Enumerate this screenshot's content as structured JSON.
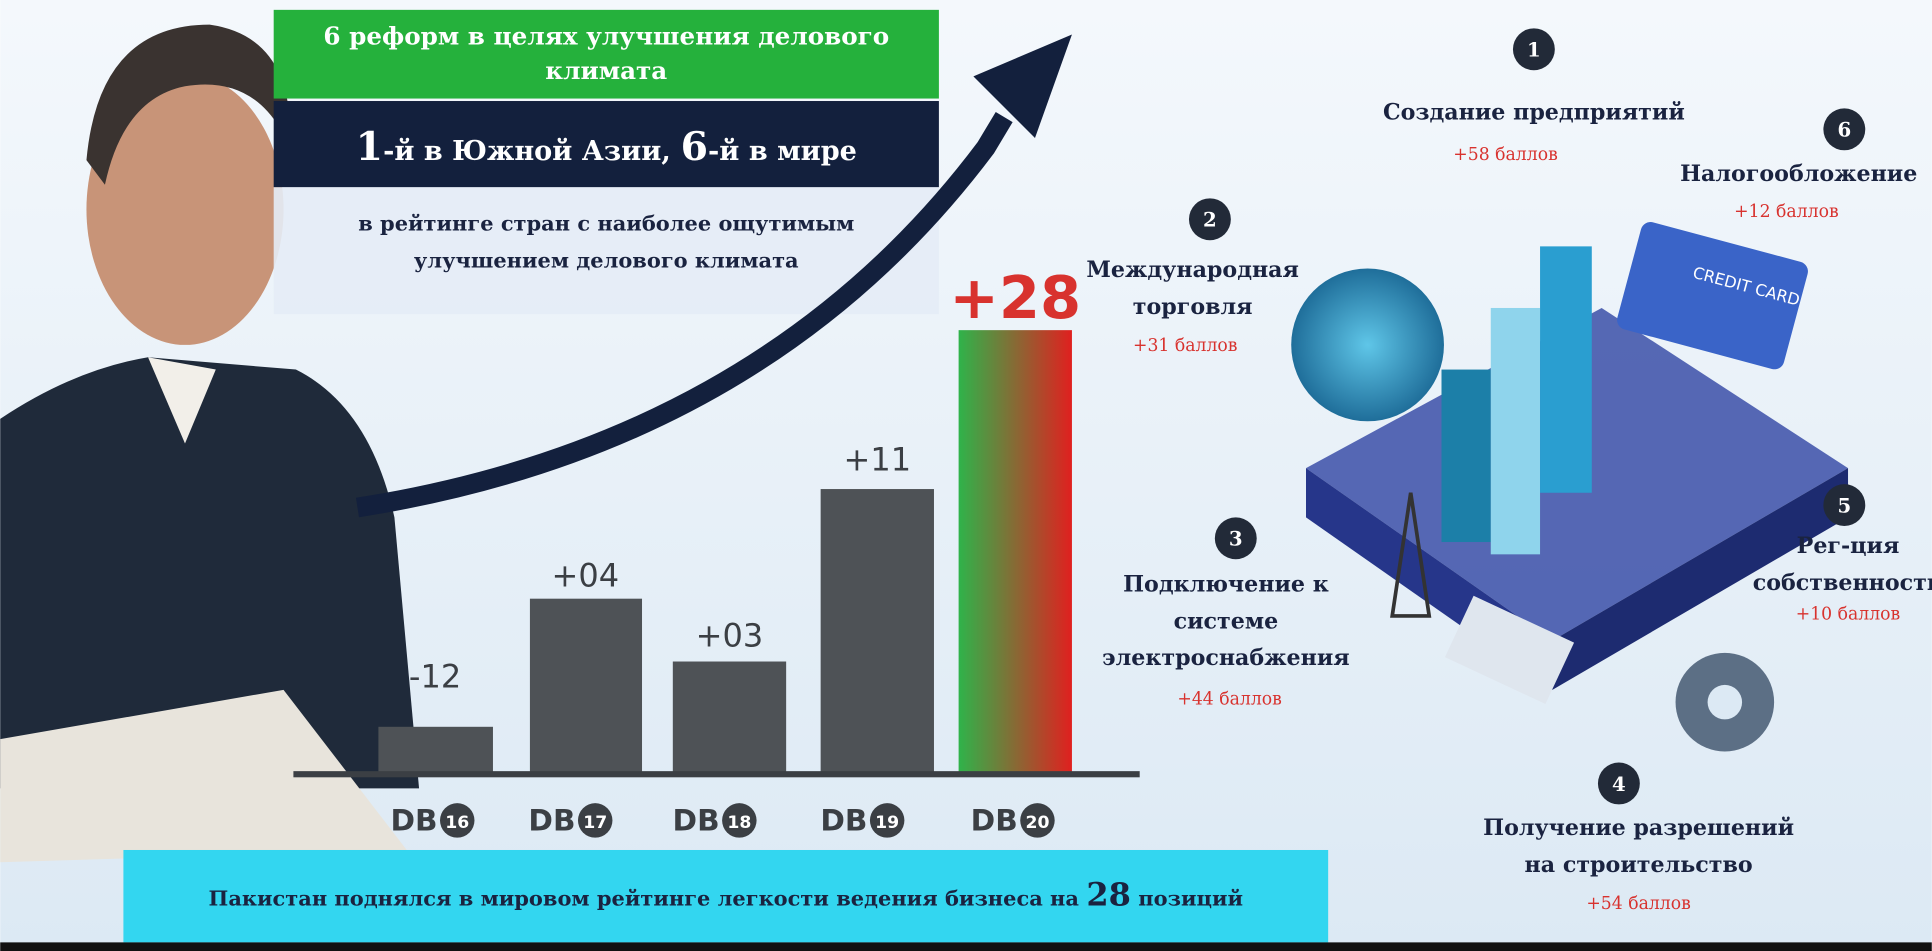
{
  "header": {
    "title_lines": [
      "6 реформ в целях улучшения делового",
      "климата"
    ],
    "rank_first": "1",
    "rank_first_text": "-й в Южной Азии,",
    "rank_second": "6",
    "rank_second_text": "-й в мире",
    "subtitle_lines": [
      "в рейтинге стран с наиболее ощутимым",
      "улучшением делового климата"
    ]
  },
  "bars": [
    {
      "label": "-12",
      "prefix": "DB",
      "year": "16"
    },
    {
      "label": "+04",
      "prefix": "DB",
      "year": "17"
    },
    {
      "label": "+03",
      "prefix": "DB",
      "year": "18"
    },
    {
      "label": "+11",
      "prefix": "DB",
      "year": "19"
    },
    {
      "label": "+28",
      "prefix": "DB",
      "year": "20"
    }
  ],
  "footer": {
    "before": "Пакистан поднялся в мировом рейтинге легкости ведения бизнеса на",
    "number": "28",
    "after": "позиций"
  },
  "reforms": [
    {
      "number": "1",
      "title_lines": [
        "Создание предприятий"
      ],
      "points": "+58 баллов"
    },
    {
      "number": "2",
      "title_lines": [
        "Международная",
        "торговля"
      ],
      "points": "+31 баллов"
    },
    {
      "number": "3",
      "title_lines": [
        "Подключение к",
        "системе",
        "электроснабжения"
      ],
      "points": "+44 баллов"
    },
    {
      "number": "4",
      "title_lines": [
        "Получение разрешений",
        "на строительство"
      ],
      "points": "+54 баллов"
    },
    {
      "number": "5",
      "title_lines": [
        "Рег-ция",
        "собственности"
      ],
      "points": "+10 баллов"
    },
    {
      "number": "6",
      "title_lines": [
        "Налогообложение"
      ],
      "points": "+12 баллов"
    }
  ],
  "illustration": {
    "card": "CREDIT CARD"
  }
}
